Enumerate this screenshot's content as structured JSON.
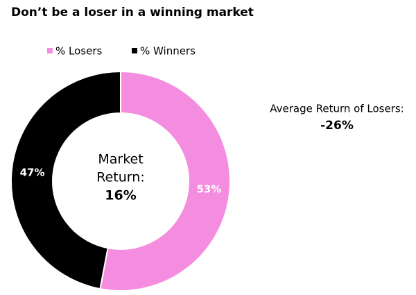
{
  "chart_data": {
    "type": "donut",
    "title": "Don’t be a loser in a winning market",
    "categories": [
      "% Losers",
      "% Winners"
    ],
    "values": [
      53,
      47
    ],
    "value_labels": [
      "53%",
      "47%"
    ],
    "colors": [
      "#f48ddf",
      "#000000"
    ],
    "center_label": [
      "Market",
      "Return:"
    ],
    "center_value": "16%",
    "annotation": "Average Return of Losers:",
    "annotation_value": "-26%"
  }
}
